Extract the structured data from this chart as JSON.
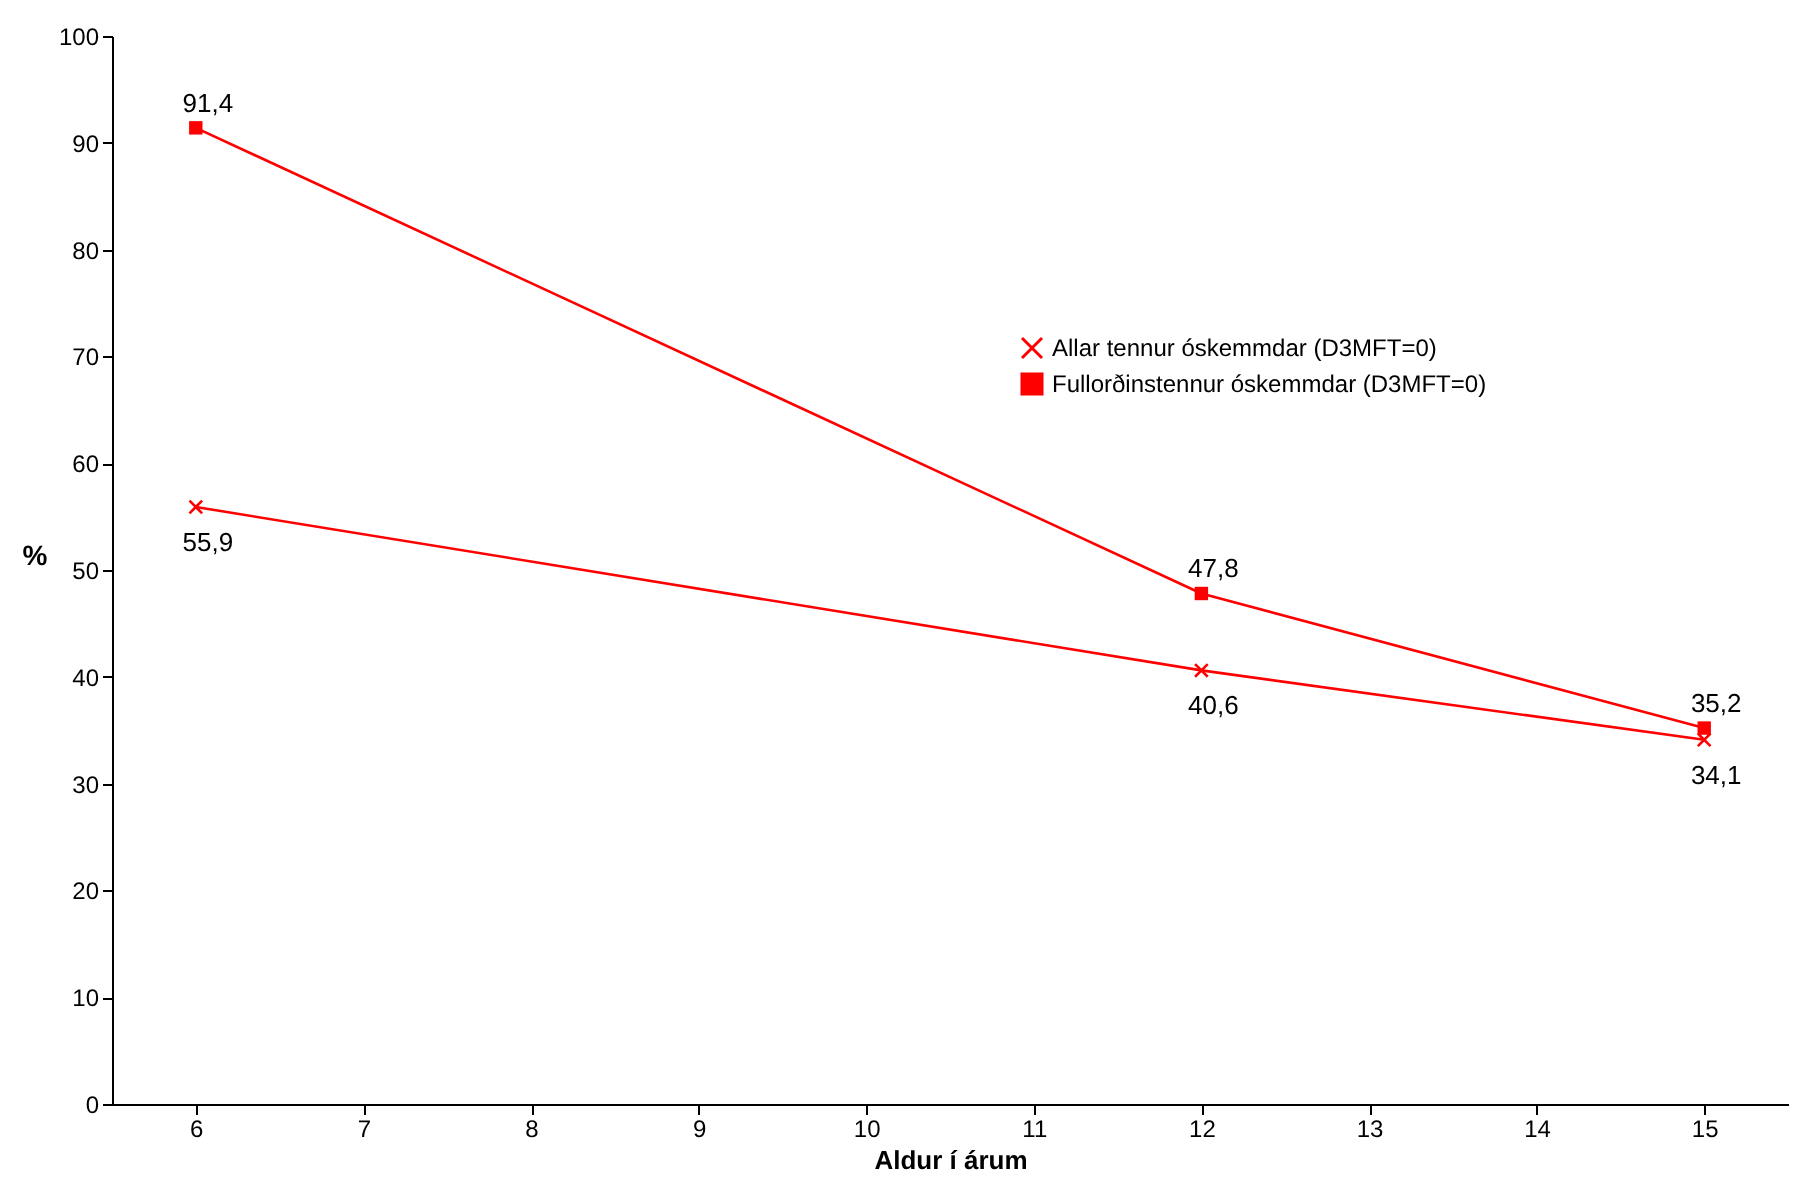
{
  "chart_data": {
    "type": "line",
    "xlabel": "Aldur í árum",
    "ylabel": "%",
    "x": [
      6,
      12,
      15
    ],
    "xlim": [
      5.5,
      15.5
    ],
    "xticks": [
      6,
      7,
      8,
      9,
      10,
      11,
      12,
      13,
      14,
      15
    ],
    "ylim": [
      0,
      100
    ],
    "yticks": [
      0,
      10,
      20,
      30,
      40,
      50,
      60,
      70,
      80,
      90,
      100
    ],
    "grid": false,
    "legend": "top right",
    "series": [
      {
        "name": "Allar tennur óskemmdar (D3MFT=0)",
        "color": "#ff0000",
        "marker": "cross",
        "values": [
          55.9,
          40.6,
          34.1
        ],
        "value_labels": [
          "55,9",
          "40,6",
          "34,1"
        ]
      },
      {
        "name": "Fullorðinstennur óskemmdar (D3MFT=0)",
        "color": "#ff0000",
        "marker": "square",
        "values": [
          91.4,
          47.8,
          35.2
        ],
        "value_labels": [
          "91,4",
          "47,8",
          "35,2"
        ]
      }
    ]
  }
}
